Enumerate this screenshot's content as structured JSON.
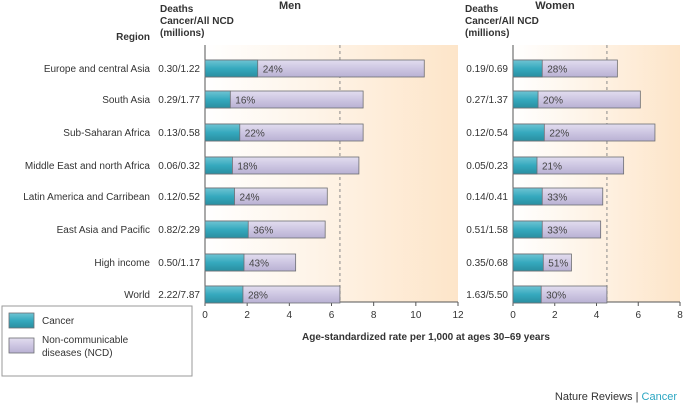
{
  "chart_data": {
    "type": "bar",
    "stacked": false,
    "orientation": "horizontal",
    "categories": [
      "Europe and central Asia",
      "South Asia",
      "Sub-Saharan Africa",
      "Middle East and north Africa",
      "Latin America and Carribean",
      "East Asia and Pacific",
      "High income",
      "World"
    ],
    "region_header": "Region",
    "deaths_header": [
      "Deaths",
      "Cancer/All NCD",
      "(millions)"
    ],
    "xlabel": "Age-standardized rate per 1,000 at ages 30–69 years",
    "panels": [
      {
        "title": "Men",
        "xlim": [
          0,
          12
        ],
        "ticks": [
          "0",
          "2",
          "4",
          "6",
          "8",
          "10",
          "12"
        ],
        "reference_line": 6.4,
        "deaths": [
          "0.30/1.22",
          "0.29/1.77",
          "0.13/0.58",
          "0.06/0.32",
          "0.12/0.52",
          "0.82/2.29",
          "0.50/1.17",
          "2.22/7.87"
        ],
        "cancer": [
          2.5,
          1.2,
          1.65,
          1.3,
          1.4,
          2.05,
          1.85,
          1.8
        ],
        "ncd": [
          10.4,
          7.5,
          7.5,
          7.3,
          5.8,
          5.7,
          4.3,
          6.4
        ],
        "percent": [
          "24%",
          "16%",
          "22%",
          "18%",
          "24%",
          "36%",
          "43%",
          "28%"
        ]
      },
      {
        "title": "Women",
        "xlim": [
          0,
          8
        ],
        "ticks": [
          "0",
          "2",
          "4",
          "6",
          "8"
        ],
        "reference_line": 4.5,
        "deaths": [
          "0.19/0.69",
          "0.27/1.37",
          "0.12/0.54",
          "0.05/0.23",
          "0.14/0.41",
          "0.51/1.58",
          "0.35/0.68",
          "1.63/5.50"
        ],
        "cancer": [
          1.4,
          1.2,
          1.5,
          1.15,
          1.4,
          1.4,
          1.45,
          1.35
        ],
        "ncd": [
          5.0,
          6.1,
          6.8,
          5.3,
          4.3,
          4.2,
          2.8,
          4.5
        ],
        "percent": [
          "28%",
          "20%",
          "22%",
          "21%",
          "33%",
          "33%",
          "51%",
          "30%"
        ]
      }
    ],
    "legend": [
      "Cancer",
      "Non-communicable diseases (NCD)"
    ],
    "colors": {
      "cancer": "#35a9be",
      "ncd": "#cdc6e2",
      "bar_stroke": "#6d6e73",
      "panel_left": "#ffffff",
      "panel_right": "#fde5c9",
      "reference": "#8a8a8a",
      "journal": "#2aa6c2"
    }
  },
  "credit": {
    "source": "Nature Reviews",
    "separator": "|",
    "journal": "Cancer"
  }
}
